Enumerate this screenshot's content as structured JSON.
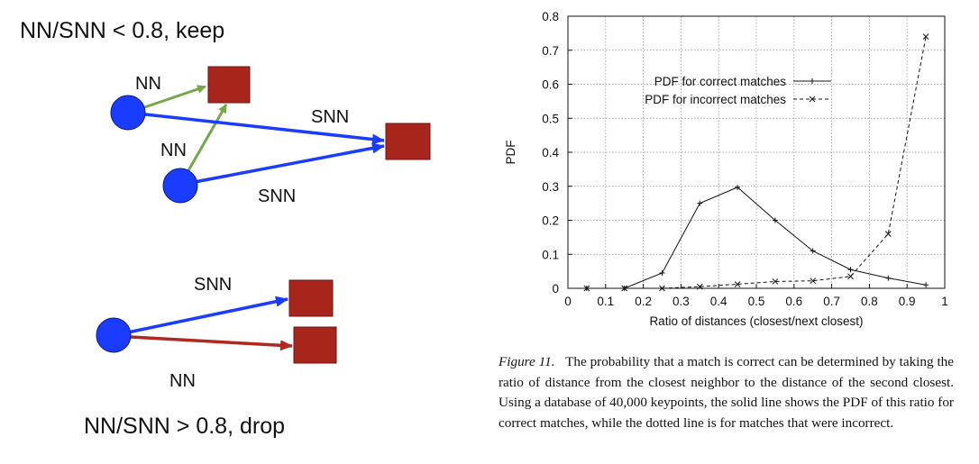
{
  "diagram": {
    "keep_title": "NN/SNN < 0.8, keep",
    "drop_title": "NN/SNN > 0.8, drop",
    "nn_label": "NN",
    "snn_label": "SNN",
    "colors": {
      "keypoint": "#1a3cff",
      "match_box": "#a8251c",
      "nn_arrow_keep": "#76a84a",
      "snn_arrow": "#1a3cff",
      "nn_arrow_drop": "#b0281e"
    }
  },
  "chart_data": {
    "type": "line",
    "xlabel": "Ratio of distances (closest/next closest)",
    "ylabel": "PDF",
    "xlim": [
      0,
      1
    ],
    "ylim": [
      0,
      0.8
    ],
    "x_ticks": [
      "0",
      "0.1",
      "0.2",
      "0.3",
      "0.4",
      "0.5",
      "0.6",
      "0.7",
      "0.8",
      "0.9",
      "1"
    ],
    "y_ticks": [
      "0",
      "0.1",
      "0.2",
      "0.3",
      "0.4",
      "0.5",
      "0.6",
      "0.7",
      "0.8"
    ],
    "grid": true,
    "legend_position": "top-center",
    "series": [
      {
        "name": "PDF for correct matches",
        "style": "solid",
        "marker": "plus",
        "x": [
          0.05,
          0.15,
          0.25,
          0.35,
          0.45,
          0.55,
          0.65,
          0.75,
          0.85,
          0.95
        ],
        "y": [
          0.0,
          0.0,
          0.045,
          0.25,
          0.297,
          0.2,
          0.11,
          0.055,
          0.03,
          0.01
        ]
      },
      {
        "name": "PDF for incorrect matches",
        "style": "dashed",
        "marker": "x",
        "x": [
          0.05,
          0.15,
          0.25,
          0.35,
          0.45,
          0.55,
          0.65,
          0.75,
          0.85,
          0.95
        ],
        "y": [
          0.0,
          0.0,
          0.0,
          0.005,
          0.012,
          0.02,
          0.022,
          0.035,
          0.16,
          0.74
        ]
      }
    ]
  },
  "caption": {
    "figure_label": "Figure 11.",
    "text": "The probability that a match is correct can be determined by taking the ratio of distance from the closest neighbor to the distance of the second closest. Using a database of 40,000 keypoints, the solid line shows the PDF of this ratio for correct matches, while the dotted line is for matches that were incorrect."
  }
}
